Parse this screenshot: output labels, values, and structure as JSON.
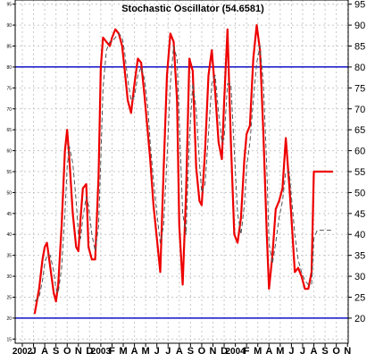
{
  "chart_data": {
    "type": "line",
    "title": "Stochastic Oscillator (54.6581)",
    "xlabel": "",
    "ylabel": "",
    "ylim": [
      14,
      96
    ],
    "grid": true,
    "legend": "none",
    "x_tick_labels": [
      "2002",
      "J",
      "A",
      "S",
      "O",
      "N",
      "D",
      "2003",
      "F",
      "M",
      "A",
      "M",
      "J",
      "J",
      "A",
      "S",
      "O",
      "N",
      "D",
      "2004",
      "F",
      "M",
      "A",
      "M",
      "J",
      "J",
      "A",
      "S",
      "O",
      "N"
    ],
    "y_ticks_right": [
      20,
      25,
      30,
      35,
      40,
      45,
      50,
      55,
      60,
      65,
      70,
      75,
      80,
      85,
      90,
      95
    ],
    "y_ticks_left": [
      15,
      20,
      25,
      30,
      35,
      40,
      45,
      50,
      55,
      60,
      65,
      70,
      75,
      80,
      85,
      90,
      95
    ],
    "reference_lines": [
      20,
      80
    ],
    "series": [
      {
        "x": [
          1.1,
          1.5,
          1.8,
          2.0,
          2.2,
          2.5,
          2.8,
          3.0,
          3.2,
          3.5,
          3.8,
          4.0,
          4.2,
          4.5,
          4.8,
          5.0,
          5.2,
          5.4,
          5.7,
          5.9,
          6.2,
          6.5,
          6.8,
          7.0,
          7.2,
          7.5,
          7.8,
          8.0,
          8.3,
          8.6,
          8.9,
          9.1,
          9.4,
          9.7,
          10.0,
          10.3,
          10.6,
          10.9,
          11.2,
          11.4,
          11.7,
          12.0,
          12.3,
          12.6,
          12.9,
          13.2,
          13.5,
          13.8,
          14.0,
          14.3,
          14.6,
          14.9,
          15.2,
          15.5,
          15.8,
          16.0,
          16.3,
          16.6,
          16.9,
          17.2,
          17.5,
          17.8,
          18.0,
          18.3,
          18.6,
          18.9,
          19.2,
          19.5,
          19.8,
          20.0,
          20.3,
          20.6,
          20.9,
          21.2,
          21.5,
          21.8,
          22.0,
          22.3,
          22.6,
          22.9,
          23.2,
          23.5,
          23.8,
          24.0,
          24.3,
          24.6,
          24.9,
          25.2,
          25.5,
          25.8,
          26.0,
          26.3,
          26.6,
          26.9,
          27.2,
          27.5,
          27.7
        ],
        "values": [
          21,
          27,
          34,
          37,
          38,
          32,
          26,
          24,
          28,
          42,
          60,
          65,
          58,
          45,
          37,
          36,
          44,
          51,
          52,
          37,
          34,
          34,
          54,
          80,
          87,
          86,
          85,
          87,
          89,
          88,
          85,
          80,
          72,
          69,
          76,
          82,
          81,
          73,
          64,
          58,
          47,
          39,
          31,
          55,
          78,
          88,
          86,
          72,
          42,
          28,
          50,
          82,
          79,
          56,
          48,
          47,
          60,
          78,
          84,
          74,
          62,
          58,
          72,
          89,
          62,
          40,
          38,
          44,
          58,
          64,
          66,
          82,
          90,
          84,
          64,
          40,
          27,
          35,
          46,
          48,
          51,
          63,
          52,
          44,
          31,
          32,
          30,
          27,
          27,
          31,
          55,
          55,
          55,
          55,
          55,
          55,
          55
        ],
        "color": "#ee0000"
      },
      {
        "x": [
          1.1,
          1.5,
          1.8,
          2.0,
          2.2,
          2.5,
          2.8,
          3.0,
          3.2,
          3.5,
          3.8,
          4.0,
          4.2,
          4.5,
          4.8,
          5.0,
          5.2,
          5.4,
          5.7,
          5.9,
          6.2,
          6.5,
          6.8,
          7.0,
          7.2,
          7.5,
          7.8,
          8.0,
          8.3,
          8.6,
          8.9,
          9.1,
          9.4,
          9.7,
          10.0,
          10.3,
          10.6,
          10.9,
          11.2,
          11.4,
          11.7,
          12.0,
          12.3,
          12.6,
          12.9,
          13.2,
          13.5,
          13.8,
          14.0,
          14.3,
          14.6,
          14.9,
          15.2,
          15.5,
          15.8,
          16.0,
          16.3,
          16.6,
          16.9,
          17.2,
          17.5,
          17.8,
          18.0,
          18.3,
          18.6,
          18.9,
          19.2,
          19.5,
          19.8,
          20.0,
          20.3,
          20.6,
          20.9,
          21.2,
          21.5,
          21.8,
          22.0,
          22.3,
          22.6,
          22.9,
          23.2,
          23.5,
          23.8,
          24.0,
          24.3,
          24.6,
          24.9,
          25.2,
          25.5,
          25.8,
          26.0,
          26.3,
          26.6,
          26.9,
          27.2,
          27.5,
          27.7
        ],
        "values": [
          24,
          25,
          29,
          33,
          35,
          35,
          31,
          27,
          26,
          32,
          45,
          56,
          61,
          57,
          48,
          40,
          39,
          44,
          49,
          47,
          40,
          36,
          42,
          58,
          75,
          84,
          86,
          86,
          87,
          88,
          87,
          84,
          77,
          72,
          73,
          78,
          80,
          77,
          70,
          62,
          53,
          45,
          38,
          42,
          58,
          76,
          85,
          82,
          67,
          45,
          40,
          63,
          76,
          70,
          57,
          50,
          52,
          64,
          76,
          78,
          69,
          62,
          63,
          76,
          76,
          60,
          45,
          40,
          47,
          56,
          62,
          72,
          81,
          85,
          76,
          56,
          38,
          33,
          38,
          44,
          48,
          55,
          55,
          49,
          40,
          34,
          31,
          29,
          28,
          28,
          39,
          41,
          41,
          41,
          41,
          41,
          41
        ],
        "color": "#555555"
      }
    ]
  }
}
